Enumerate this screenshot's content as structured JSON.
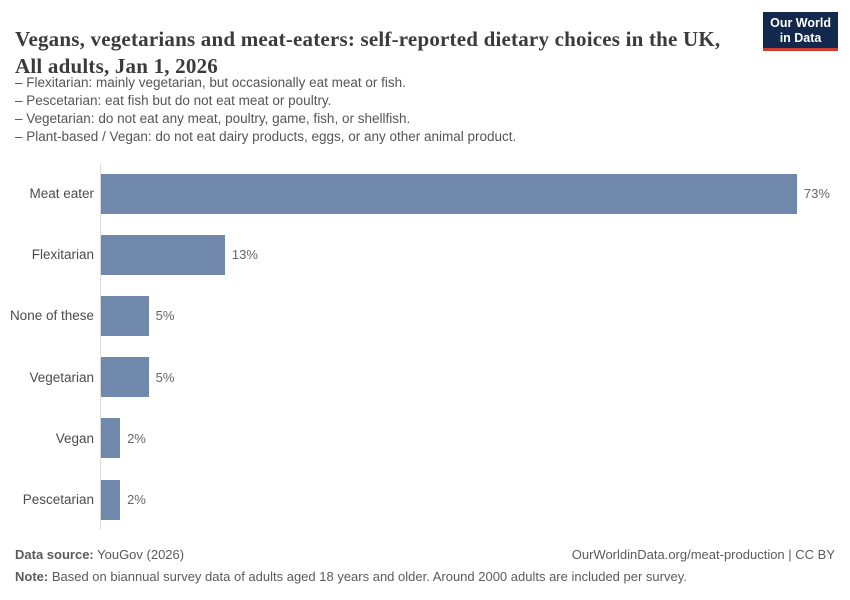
{
  "header": {
    "title": "Vegans, vegetarians and meat-eaters: self-reported dietary choices in the UK, All adults, Jan 1, 2026",
    "subtitle_lines": [
      "– Flexitarian: mainly vegetarian, but occasionally eat meat or fish.",
      "– Pescetarian: eat fish but do not eat meat or poultry.",
      "– Vegetarian: do not eat any meat, poultry, game, fish, or shellfish.",
      "– Plant-based / Vegan: do not eat dairy products, eggs, or any other animal product."
    ],
    "logo": {
      "line1": "Our World",
      "line2": "in Data",
      "bg_color": "#12294d",
      "accent_color": "#d13c32"
    }
  },
  "chart_data": {
    "type": "bar",
    "orientation": "horizontal",
    "categories": [
      "Meat eater",
      "Flexitarian",
      "None of these",
      "Vegetarian",
      "Vegan",
      "Pescetarian"
    ],
    "values": [
      73,
      13,
      5,
      5,
      2,
      2
    ],
    "value_labels": [
      "73%",
      "13%",
      "5%",
      "5%",
      "2%",
      "2%"
    ],
    "bar_color": "#6f88ab",
    "xlim": [
      0,
      77
    ],
    "grid": false,
    "legend": "none",
    "xlabel": "",
    "ylabel": ""
  },
  "footer": {
    "source_label": "Data source:",
    "source_text": " YouGov (2026)",
    "link_text": "OurWorldinData.org/meat-production | CC BY",
    "note_label": "Note:",
    "note_text": " Based on biannual survey data of adults aged 18 years and older. Around 2000 adults are included per survey."
  }
}
